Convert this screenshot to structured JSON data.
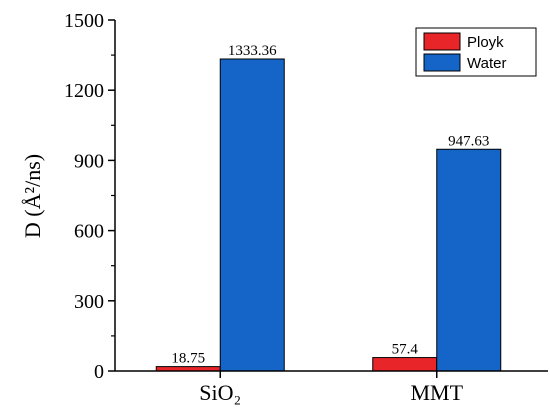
{
  "chart_data": {
    "type": "bar",
    "categories": [
      "SiO₂",
      "MMT"
    ],
    "series": [
      {
        "name": "Ployk",
        "values": [
          18.75,
          57.4
        ],
        "labels": [
          "18.75",
          "57.4"
        ],
        "color": "#e8262a"
      },
      {
        "name": "Water",
        "values": [
          1333.36,
          947.63
        ],
        "labels": [
          "1333.36",
          "947.63"
        ],
        "color": "#1565c9"
      }
    ],
    "ylabel": "D (Å²/ns)",
    "ylim": [
      0,
      1500
    ],
    "yticks": [
      0,
      300,
      600,
      900,
      1200,
      1500
    ],
    "ytick_labels": [
      "0",
      "300",
      "600",
      "900",
      "1200",
      "1500"
    ],
    "legend_placement": "top-right",
    "grid": false
  }
}
